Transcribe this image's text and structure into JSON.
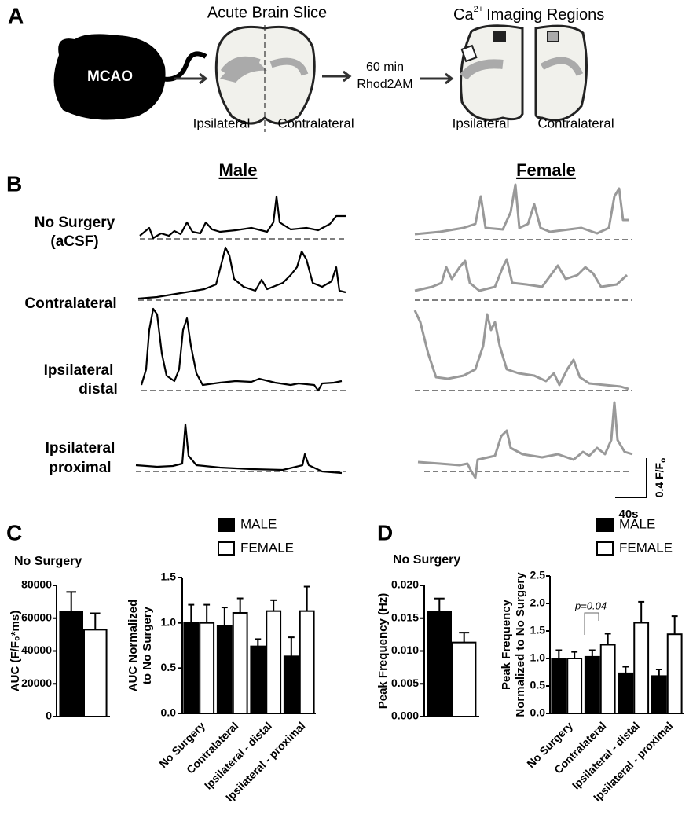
{
  "panel_a": {
    "letter": "A",
    "mouse_label": "MCAO",
    "slice_title": "Acute Brain Slice",
    "slice_left": "Ipsilateral",
    "slice_right": "Contralateral",
    "step_line1": "60 min",
    "step_line2": "Rhod2AM",
    "regions_title": [
      "Ca",
      "2+",
      "Imaging Regions"
    ],
    "regions_left": "Ipsilateral",
    "regions_right": "Contralateral"
  },
  "panel_b": {
    "letter": "B",
    "columns": [
      "Male",
      "Female"
    ],
    "rows": [
      [
        "No Surgery",
        "(aCSF)"
      ],
      [
        "Contralateral"
      ],
      [
        "Ipsilateral",
        "distal"
      ],
      [
        "Ipsilateral",
        "proximal"
      ]
    ],
    "scale_y": [
      "0.4 F/F",
      "o"
    ],
    "scale_x": "40s"
  },
  "chart_data": [
    {
      "type": "bar",
      "panel": "C",
      "title": "No Surgery",
      "ylabel": [
        "AUC (F/F₀*ms)"
      ],
      "ylim": [
        0,
        80000
      ],
      "yticks": [
        0,
        20000,
        40000,
        60000,
        80000
      ],
      "series": [
        {
          "color": "#000000",
          "values": [
            64000
          ],
          "errors": [
            12000
          ]
        },
        {
          "color": "#ffffff",
          "values": [
            53000
          ],
          "errors": [
            10000
          ]
        }
      ]
    },
    {
      "type": "bar",
      "ylabel": [
        "AUC Normalized",
        "to No Surgery"
      ],
      "ylim": [
        0,
        1.5
      ],
      "yticks": [
        {
          "value": 0,
          "label": "0.0"
        },
        {
          "value": 0.5,
          "label": "0.5"
        },
        {
          "value": 1,
          "label": "1.0"
        },
        {
          "value": 1.5,
          "label": "1.5"
        }
      ],
      "categories": [
        "No Surgery",
        "Contralateral",
        "Ipsilateral - distal",
        "Ipsilateral - proximal"
      ],
      "series": [
        {
          "name": "MALE",
          "color": "#000000",
          "values": [
            1.0,
            0.97,
            0.74,
            0.63
          ],
          "errors": [
            0.2,
            0.2,
            0.08,
            0.21
          ]
        },
        {
          "name": "FEMALE",
          "color": "#ffffff",
          "values": [
            1.0,
            1.11,
            1.13,
            1.13
          ],
          "errors": [
            0.2,
            0.16,
            0.12,
            0.27
          ]
        }
      ]
    },
    {
      "type": "bar",
      "panel": "D",
      "title": "No Surgery",
      "ylabel": [
        "Peak Frequency (Hz)"
      ],
      "ylim": [
        0,
        0.02
      ],
      "yticks": [
        {
          "value": 0,
          "label": "0.000"
        },
        {
          "value": 0.005,
          "label": "0.005"
        },
        {
          "value": 0.01,
          "label": "0.010"
        },
        {
          "value": 0.015,
          "label": "0.015"
        },
        {
          "value": 0.02,
          "label": "0.020"
        }
      ],
      "series": [
        {
          "color": "#000000",
          "values": [
            0.016
          ],
          "errors": [
            0.002
          ]
        },
        {
          "color": "#ffffff",
          "values": [
            0.0113
          ],
          "errors": [
            0.0015
          ]
        }
      ]
    },
    {
      "type": "bar",
      "ylabel": [
        "Peak Frequency",
        "Normalized to No Surgery"
      ],
      "ylim": [
        0,
        2.5
      ],
      "yticks": [
        {
          "value": 0,
          "label": "0.0"
        },
        {
          "value": 0.5,
          "label": "0.5"
        },
        {
          "value": 1,
          "label": "1.0"
        },
        {
          "value": 1.5,
          "label": "1.5"
        },
        {
          "value": 2,
          "label": "2.0"
        },
        {
          "value": 2.5,
          "label": "2.5"
        }
      ],
      "categories": [
        "No Surgery",
        "Contralateral",
        "Ipsilateral - distal",
        "Ipsilateral - proximal"
      ],
      "annotation": "p=0.04",
      "series": [
        {
          "name": "MALE",
          "color": "#000000",
          "values": [
            1.0,
            1.03,
            0.73,
            0.68
          ],
          "errors": [
            0.15,
            0.12,
            0.12,
            0.12
          ]
        },
        {
          "name": "FEMALE",
          "color": "#ffffff",
          "values": [
            1.0,
            1.25,
            1.65,
            1.44
          ],
          "errors": [
            0.12,
            0.2,
            0.38,
            0.33
          ]
        }
      ]
    }
  ]
}
